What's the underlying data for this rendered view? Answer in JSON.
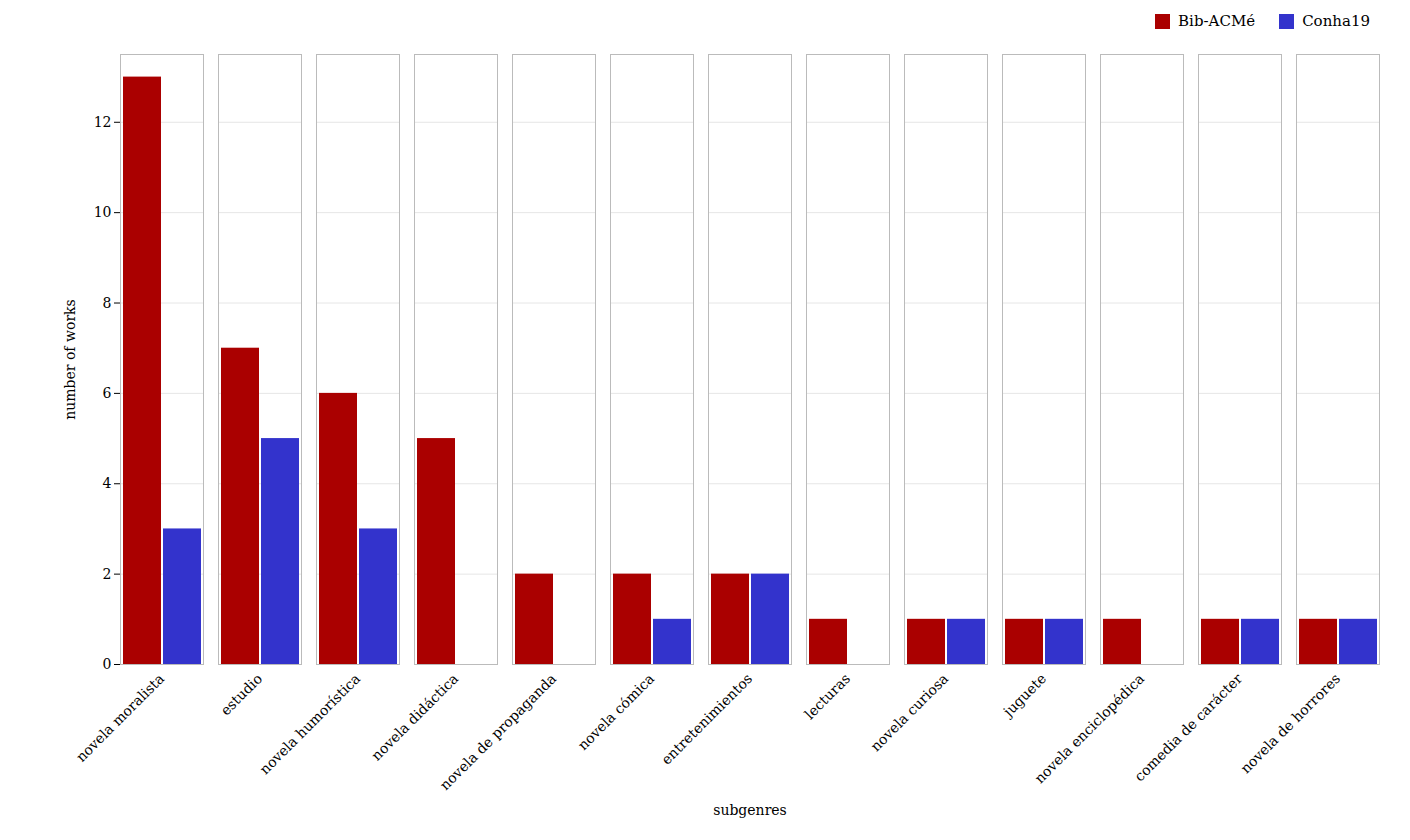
{
  "chart_data": {
    "type": "bar",
    "categories": [
      "novela moralista",
      "estudio",
      "novela humorística",
      "novela didáctica",
      "novela de propaganda",
      "novela cómica",
      "entretenimientos",
      "lecturas",
      "novela curiosa",
      "juguete",
      "novela enciclopédica",
      "comedia de carácter",
      "novela de horrores"
    ],
    "series": [
      {
        "name": "Bib-ACMé",
        "color": "#AA0000",
        "values": [
          13,
          7,
          6,
          5,
          2,
          2,
          2,
          1,
          1,
          1,
          1,
          1,
          1
        ]
      },
      {
        "name": "Conha19",
        "color": "#3333CC",
        "values": [
          3,
          5,
          3,
          0,
          0,
          1,
          2,
          0,
          1,
          1,
          0,
          1,
          1
        ]
      }
    ],
    "xlabel": "subgenres",
    "ylabel": "number of works",
    "ylim": [
      0,
      13.5
    ],
    "yticks": [
      0,
      2,
      4,
      6,
      8,
      10,
      12
    ],
    "grid": true,
    "legend": "upper right"
  }
}
